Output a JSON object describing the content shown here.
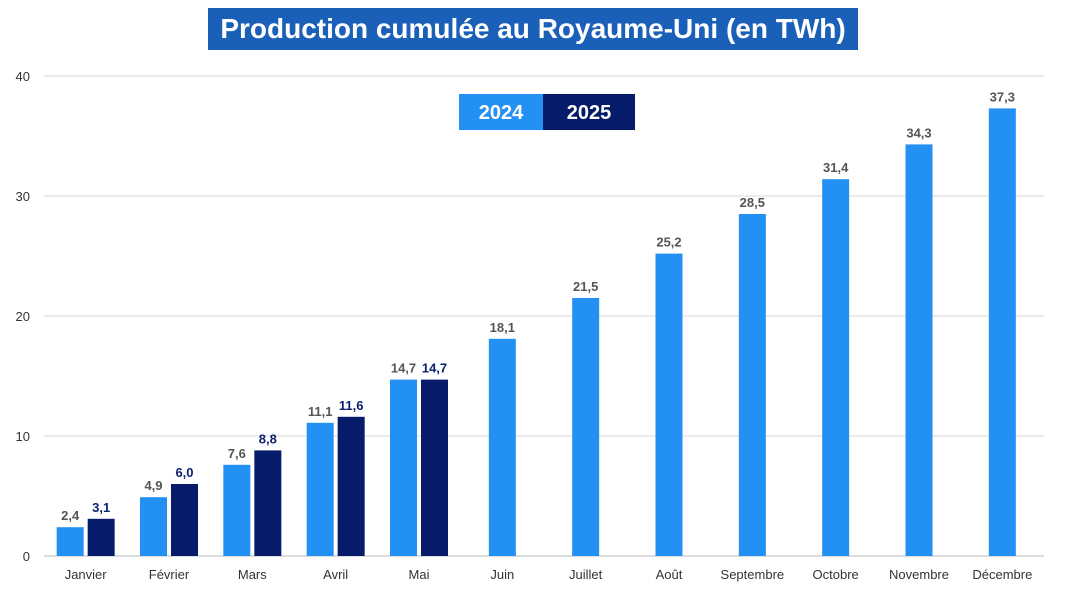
{
  "chart_data": {
    "type": "bar",
    "title": "Production cumulée au Royaume-Uni (en TWh)",
    "categories": [
      "Janvier",
      "Février",
      "Mars",
      "Avril",
      "Mai",
      "Juin",
      "Juillet",
      "Août",
      "Septembre",
      "Octobre",
      "Novembre",
      "Décembre"
    ],
    "series": [
      {
        "name": "2024",
        "color": "#2390f3",
        "values": [
          2.4,
          4.9,
          7.6,
          11.1,
          14.7,
          18.1,
          21.5,
          25.2,
          28.5,
          31.4,
          34.3,
          37.3
        ],
        "labels": [
          "2,4",
          "4,9",
          "7,6",
          "11,1",
          "14,7",
          "18,1",
          "21,5",
          "25,2",
          "28,5",
          "31,4",
          "34,3",
          "37,3"
        ]
      },
      {
        "name": "2025",
        "color": "#061c6b",
        "values": [
          3.1,
          6.0,
          8.8,
          11.6,
          14.7,
          null,
          null,
          null,
          null,
          null,
          null,
          null
        ],
        "labels": [
          "3,1",
          "6,0",
          "8,8",
          "11,6",
          "14,7",
          null,
          null,
          null,
          null,
          null,
          null,
          null
        ]
      }
    ],
    "yticks": [
      "0",
      "10",
      "20",
      "30",
      "40"
    ],
    "ylim": [
      0,
      40
    ],
    "grid": true,
    "legend_position": "top-center"
  }
}
